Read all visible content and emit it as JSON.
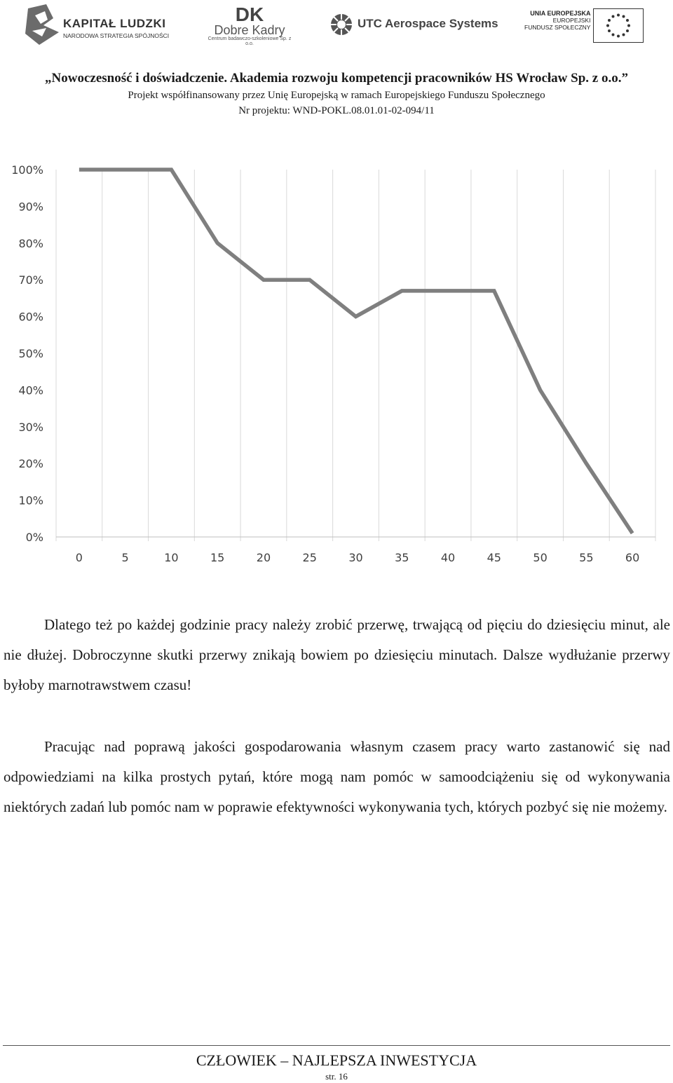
{
  "logos": {
    "kapital_ludzki": {
      "name": "KAPITAŁ LUDZKI",
      "subtitle": "NARODOWA STRATEGIA SPÓJNOŚCI"
    },
    "dobre_kadry": {
      "mark": "DK",
      "name": "Dobre Kadry",
      "subtitle": "Centrum badawczo-szkoleniowe Sp. z o.o."
    },
    "utc": {
      "name": "UTC Aerospace Systems"
    },
    "ue": {
      "line1": "UNIA EUROPEJSKA",
      "line2": "EUROPEJSKI",
      "line3": "FUNDUSZ SPOŁECZNY"
    }
  },
  "header": {
    "title": "„Nowoczesność i doświadczenie. Akademia rozwoju kompetencji pracowników HS Wrocław Sp. z o.o.”",
    "cofinancing": "Projekt współfinansowany przez Unię Europejską w ramach Europejskiego Funduszu Społecznego",
    "project_number": "Nr projektu: WND-POKL.08.01.01-02-094/11"
  },
  "chart_data": {
    "type": "line",
    "x": [
      0,
      10,
      15,
      20,
      25,
      30,
      35,
      40,
      45,
      50,
      55,
      60
    ],
    "series": [
      {
        "values": [
          100,
          100,
          80,
          70,
          70,
          60,
          67,
          67,
          67,
          40,
          20,
          1
        ]
      }
    ],
    "x_ticks": [
      "0",
      "5",
      "10",
      "15",
      "20",
      "25",
      "30",
      "35",
      "40",
      "45",
      "50",
      "55",
      "60"
    ],
    "y_ticks": [
      "0%",
      "10%",
      "20%",
      "30%",
      "40%",
      "50%",
      "60%",
      "70%",
      "80%",
      "90%",
      "100%"
    ],
    "xlim": [
      -2.5,
      62.5
    ],
    "ylim": [
      0,
      100
    ],
    "grid": "vertical",
    "line_color": "#7f7f7f"
  },
  "body": {
    "paragraph1": "Dlatego też po każdej godzinie pracy należy zrobić przerwę, trwającą od pięciu do dziesięciu minut, ale nie dłużej. Dobroczynne skutki przerwy znikają bowiem po dziesięciu minutach. Dalsze wydłużanie przerwy byłoby marnotrawstwem czasu!",
    "paragraph2": "Pracując nad poprawą jakości gospodarowania własnym czasem pracy warto zastanowić się nad odpowiedziami na kilka prostych pytań, które mogą nam pomóc w samoodciążeniu się od wykonywania niektórych zadań lub pomóc nam w poprawie efektywności wykonywania tych, których pozbyć się nie możemy."
  },
  "footer": {
    "title": "CZŁOWIEK – NAJLEPSZA INWESTYCJA",
    "page": "str. 16"
  }
}
